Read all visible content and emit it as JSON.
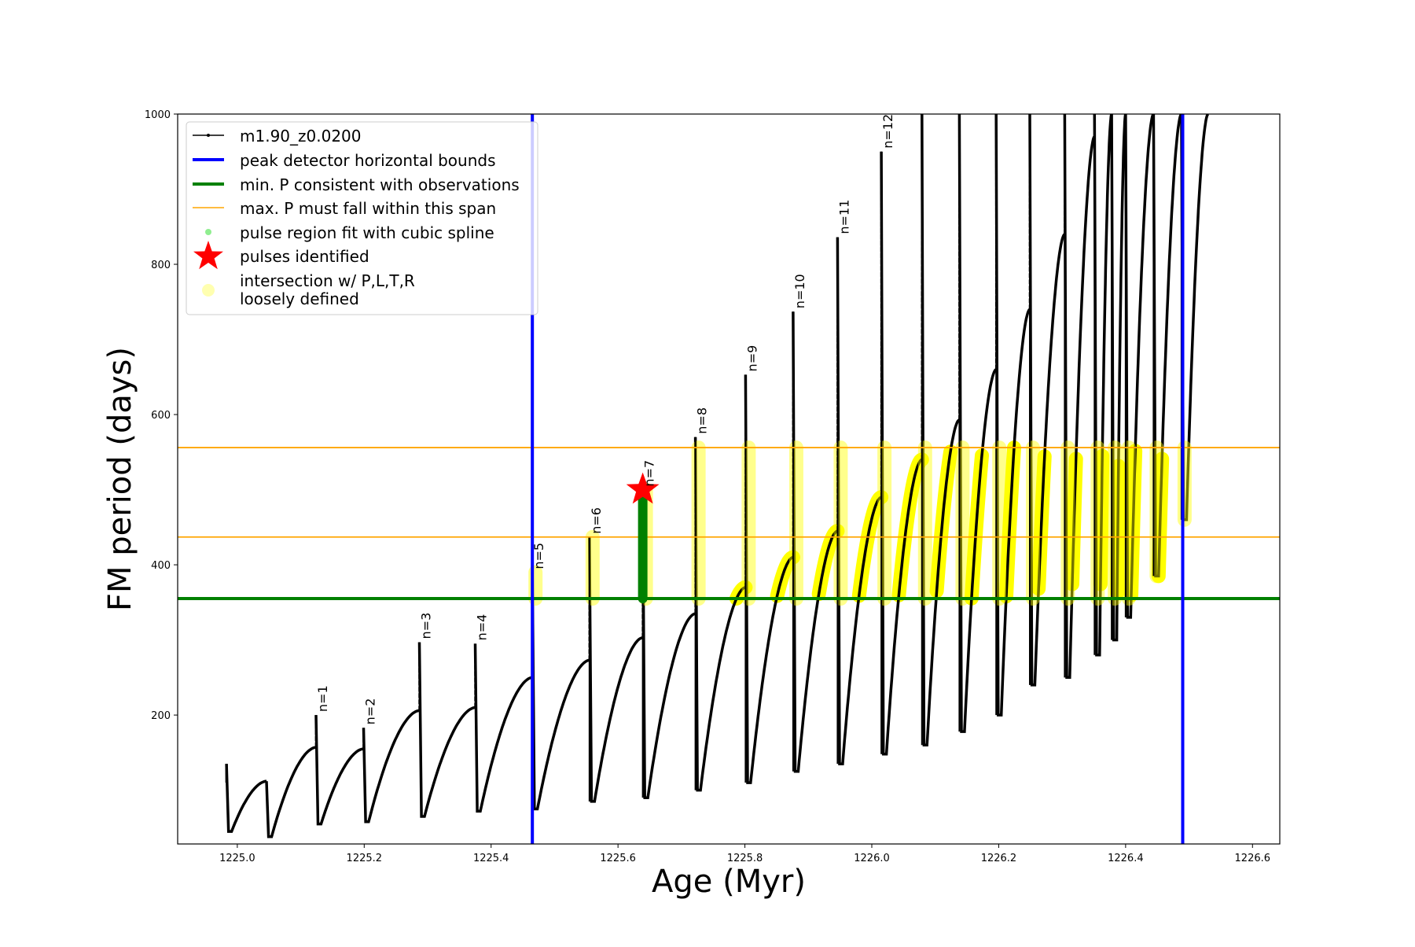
{
  "chart_data": {
    "type": "line",
    "xlabel": "Age (Myr)",
    "ylabel": "FM period (days)",
    "xlim": [
      1224.906,
      1226.643
    ],
    "ylim": [
      28.4,
      1000
    ],
    "xticks": [
      1225.0,
      1225.2,
      1225.4,
      1225.6,
      1225.8,
      1226.0,
      1226.2,
      1226.4,
      1226.6
    ],
    "xtick_labels": [
      "1225.0",
      "1225.2",
      "1225.4",
      "1225.6",
      "1225.8",
      "1226.0",
      "1226.2",
      "1226.4",
      "1226.6"
    ],
    "yticks": [
      200,
      400,
      600,
      800,
      1000
    ],
    "ytick_labels": [
      "200",
      "400",
      "600",
      "800",
      "1000"
    ],
    "grid": false,
    "legend_placement": "upper-left",
    "legend": [
      {
        "label": "m1.90_z0.0200",
        "kind": "line-dot",
        "color": "#000000"
      },
      {
        "label": "peak detector horizontal bounds",
        "kind": "thick-line",
        "color": "#0000ff"
      },
      {
        "label": "min. P consistent with observations",
        "kind": "thick-line",
        "color": "#008000"
      },
      {
        "label": "max. P must fall within this span",
        "kind": "thin-line",
        "color": "#ffa500"
      },
      {
        "label": "pulse region fit with cubic spline",
        "kind": "dot",
        "color": "#90ee90"
      },
      {
        "label": "pulses identified",
        "kind": "star",
        "color": "#ff0000"
      },
      {
        "label": "intersection w/ P,L,T,R\nloosely defined",
        "line1": "intersection w/ P,L,T,R",
        "line2": "loosely defined",
        "kind": "circle",
        "color": "#ffffb0"
      }
    ],
    "series_track": {
      "name": "m1.90_z0.0200",
      "start": {
        "age": 1224.983,
        "value": 110,
        "spike": 135,
        "min": 45
      },
      "cycles": [
        {
          "age": 1225.046,
          "pre_peak": 112,
          "spike": 112,
          "min_after": 38,
          "label": ""
        },
        {
          "age": 1225.124,
          "pre_peak": 157,
          "spike": 200,
          "min_after": 55,
          "label": "n=1"
        },
        {
          "age": 1225.199,
          "pre_peak": 155,
          "spike": 183,
          "min_after": 58,
          "label": "n=2"
        },
        {
          "age": 1225.287,
          "pre_peak": 206,
          "spike": 297,
          "min_after": 65,
          "label": "n=3"
        },
        {
          "age": 1225.375,
          "pre_peak": 210,
          "spike": 295,
          "min_after": 72,
          "label": "n=4"
        },
        {
          "age": 1225.465,
          "pre_peak": 250,
          "spike": 390,
          "min_after": 75,
          "label": "n=5"
        },
        {
          "age": 1225.555,
          "pre_peak": 273,
          "spike": 437,
          "min_after": 85,
          "label": "n=6"
        },
        {
          "age": 1225.639,
          "pre_peak": 303,
          "spike": 500,
          "min_after": 90,
          "label": "n=7"
        },
        {
          "age": 1225.722,
          "pre_peak": 335,
          "spike": 570,
          "min_after": 100,
          "label": "n=8"
        },
        {
          "age": 1225.801,
          "pre_peak": 370,
          "spike": 653,
          "min_after": 110,
          "label": "n=9"
        },
        {
          "age": 1225.876,
          "pre_peak": 410,
          "spike": 737,
          "min_after": 125,
          "label": "n=10"
        },
        {
          "age": 1225.946,
          "pre_peak": 445,
          "spike": 836,
          "min_after": 135,
          "label": "n=11"
        },
        {
          "age": 1226.015,
          "pre_peak": 490,
          "spike": 950,
          "min_after": 148,
          "label": "n=12"
        },
        {
          "age": 1226.079,
          "pre_peak": 540,
          "spike": 1000,
          "min_after": 160,
          "label": ""
        },
        {
          "age": 1226.138,
          "pre_peak": 593,
          "spike": 1000,
          "min_after": 178,
          "label": ""
        },
        {
          "age": 1226.196,
          "pre_peak": 660,
          "spike": 1000,
          "min_after": 200,
          "label": ""
        },
        {
          "age": 1226.249,
          "pre_peak": 740,
          "spike": 1000,
          "min_after": 240,
          "label": ""
        },
        {
          "age": 1226.304,
          "pre_peak": 840,
          "spike": 1000,
          "min_after": 250,
          "label": ""
        },
        {
          "age": 1226.351,
          "pre_peak": 970,
          "spike": 1000,
          "min_after": 280,
          "label": ""
        },
        {
          "age": 1226.378,
          "pre_peak": 1000,
          "spike": 1000,
          "min_after": 300,
          "label": ""
        },
        {
          "age": 1226.4,
          "pre_peak": 1000,
          "spike": 1000,
          "min_after": 330,
          "label": ""
        },
        {
          "age": 1226.444,
          "pre_peak": 1000,
          "spike": 1000,
          "min_after": 385,
          "label": ""
        },
        {
          "age": 1226.488,
          "pre_peak": 1000,
          "spike": 1000,
          "min_after": 460,
          "label": ""
        },
        {
          "age": 1226.53,
          "pre_peak": 1000,
          "spike": 1000,
          "min_after": 720,
          "label": ""
        }
      ]
    },
    "peak_detector_bounds": [
      1225.465,
      1226.49
    ],
    "min_period": 355,
    "max_period_span": [
      437,
      556
    ],
    "cubic_spline_region": {
      "age": 1225.639,
      "range": [
        355,
        500
      ]
    },
    "pulse_identified": {
      "age": 1225.639,
      "value": 500
    },
    "colors": {
      "track": "#000000",
      "bounds": "#0000ff",
      "min": "#008000",
      "max": "#ffa500",
      "spline": "#008000",
      "star": "#ff0000",
      "intersection": "#ffff00"
    }
  }
}
